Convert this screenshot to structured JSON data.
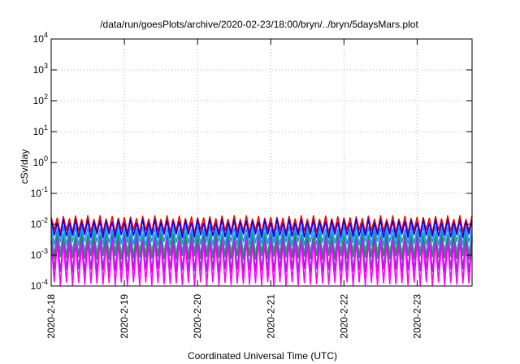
{
  "chart_data": {
    "type": "line",
    "title": "/data/run/goesPlots/archive/2020-02-23/18:00/bryn/../bryn/5daysMars.plot",
    "xlabel": "Coordinated Universal Time (UTC)",
    "ylabel": "cSv/day",
    "y_scale": "log",
    "ylim": [
      0.0001,
      10000
    ],
    "y_ticks": [
      {
        "value": 0.0001,
        "base": "10",
        "exp": "-4"
      },
      {
        "value": 0.001,
        "base": "10",
        "exp": "-3"
      },
      {
        "value": 0.01,
        "base": "10",
        "exp": "-2"
      },
      {
        "value": 0.1,
        "base": "10",
        "exp": "-1"
      },
      {
        "value": 1,
        "base": "10",
        "exp": "0"
      },
      {
        "value": 10,
        "base": "10",
        "exp": "1"
      },
      {
        "value": 100,
        "base": "10",
        "exp": "2"
      },
      {
        "value": 1000,
        "base": "10",
        "exp": "3"
      },
      {
        "value": 10000,
        "base": "10",
        "exp": "4"
      }
    ],
    "xlim": [
      "2020-02-18 00:00",
      "2020-02-23 18:00"
    ],
    "x_ticks": [
      "2020-2-18",
      "2020-2-19",
      "2020-2-20",
      "2020-2-21",
      "2020-2-22",
      "2020-2-23"
    ],
    "grid": true,
    "sawtooth_period_hours": 2,
    "series": [
      {
        "color": "#ff0000",
        "peak": 0.0165,
        "trough": 0.0058
      },
      {
        "color": "#0000ff",
        "peak": 0.0125,
        "trough": 0.0042
      },
      {
        "color": "#1e90ff",
        "peak": 0.0078,
        "trough": 0.0024
      },
      {
        "color": "#00bfbf",
        "peak": 0.0052,
        "trough": 0.0012
      },
      {
        "color": "#2e8b57",
        "peak": 0.0046,
        "trough": 0.00085
      },
      {
        "color": "#8a2be2",
        "peak": 0.0033,
        "trough": 0.00032
      },
      {
        "color": "#ff00ff",
        "peak": 0.0027,
        "trough": 0.00012
      }
    ]
  }
}
